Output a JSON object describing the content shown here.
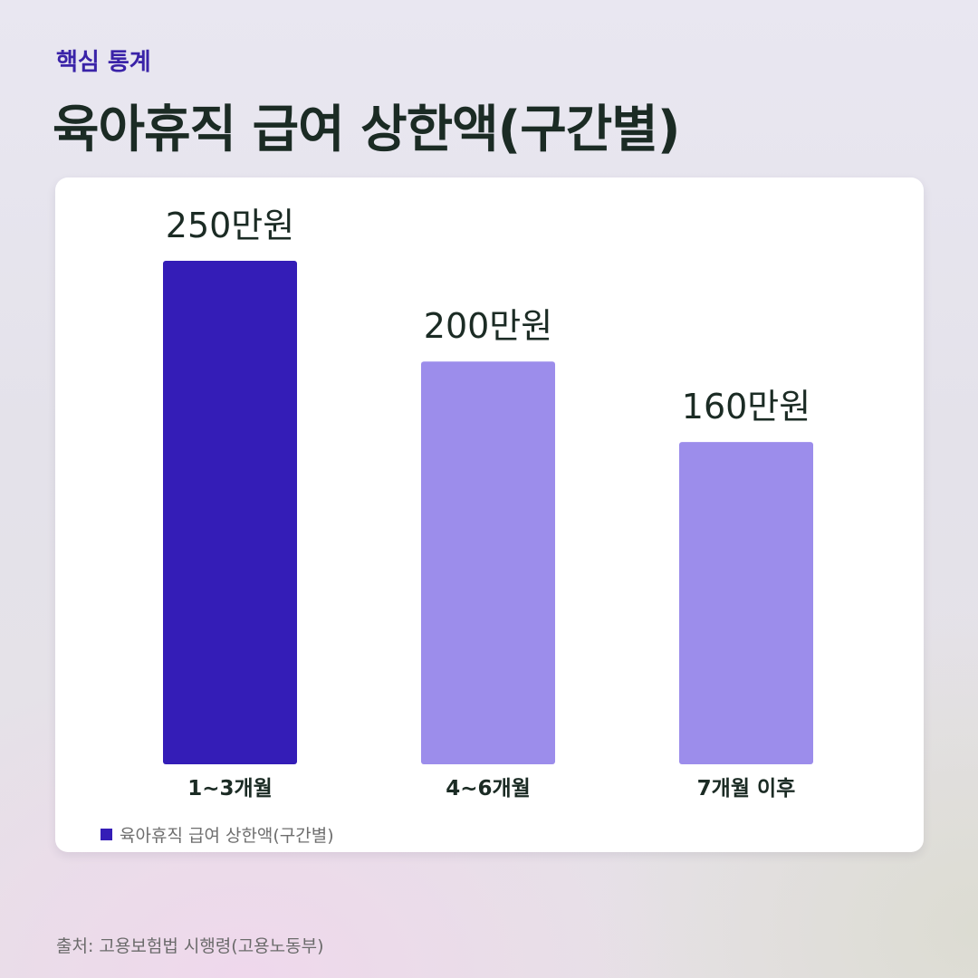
{
  "header": {
    "kicker": "핵심 통계",
    "title": "육아휴직 급여 상한액(구간별)"
  },
  "chart_data": {
    "type": "bar",
    "categories": [
      "1~3개월",
      "4~6개월",
      "7개월 이후"
    ],
    "series": [
      {
        "name": "육아휴직 급여 상한액(구간별)",
        "values": [
          250,
          200,
          160
        ],
        "labels": [
          "250만원",
          "200만원",
          "160만원"
        ]
      }
    ],
    "colors": [
      "#341db7",
      "#9c8deb",
      "#9c8deb"
    ],
    "unit": "만원",
    "ylim": [
      0,
      250
    ],
    "grid": false,
    "legend_position": "bottom-left"
  },
  "legend": {
    "label": "육아휴직 급여 상한액(구간별)",
    "color": "#341db7"
  },
  "footer": {
    "source": "출처: 고용보험법 시행령(고용노동부)"
  }
}
